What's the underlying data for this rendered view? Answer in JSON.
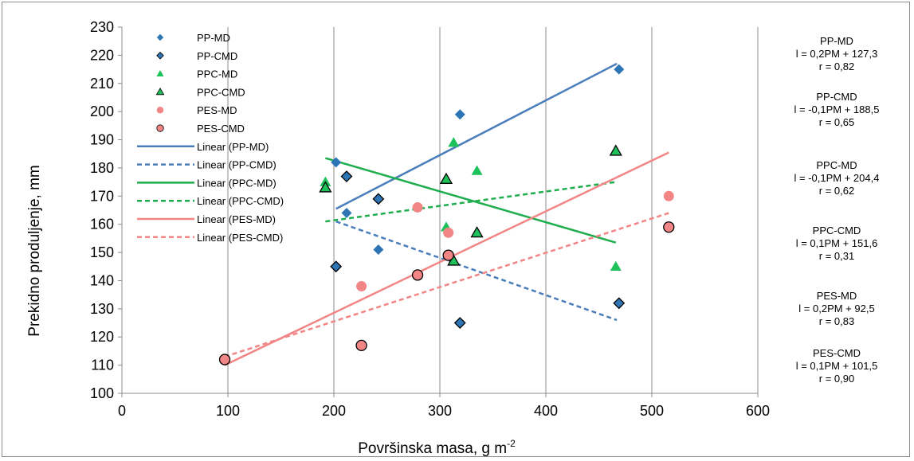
{
  "chart_data": {
    "type": "scatter",
    "xlabel": "Površinska masa, g m",
    "xlabel_sup": "-2",
    "ylabel": "Prekidno produljenje, mm",
    "xlim": [
      0,
      600
    ],
    "ylim": [
      100,
      230
    ],
    "x_ticks": [
      "0",
      "100",
      "200",
      "300",
      "400",
      "500",
      "600"
    ],
    "y_ticks": [
      "100",
      "110",
      "120",
      "130",
      "140",
      "150",
      "160",
      "170",
      "180",
      "190",
      "200",
      "210",
      "220",
      "230"
    ],
    "grid": "vertical",
    "legend_position": "top-left",
    "series": [
      {
        "name": "PP-MD",
        "marker": "diamond",
        "color": "#2e75b6",
        "outline": false,
        "points": [
          [
            202,
            182
          ],
          [
            212,
            164
          ],
          [
            242,
            151
          ],
          [
            319,
            199
          ],
          [
            469,
            215
          ]
        ]
      },
      {
        "name": "PP-CMD",
        "marker": "diamond",
        "color": "#2e75b6",
        "outline": true,
        "points": [
          [
            202,
            145
          ],
          [
            212,
            177
          ],
          [
            242,
            169
          ],
          [
            319,
            125
          ],
          [
            469,
            132
          ]
        ]
      },
      {
        "name": "PPC-MD",
        "marker": "triangle",
        "color": "#1ec15a",
        "outline": false,
        "points": [
          [
            192,
            175
          ],
          [
            306,
            159
          ],
          [
            313,
            189
          ],
          [
            335,
            179
          ],
          [
            466,
            145
          ]
        ]
      },
      {
        "name": "PPC-CMD",
        "marker": "triangle",
        "color": "#1ec15a",
        "outline": true,
        "points": [
          [
            192,
            173
          ],
          [
            306,
            176
          ],
          [
            313,
            147
          ],
          [
            335,
            157
          ],
          [
            466,
            186
          ]
        ]
      },
      {
        "name": "PES-MD",
        "marker": "circle",
        "color": "#f28585",
        "outline": false,
        "points": [
          [
            97,
            112
          ],
          [
            226,
            138
          ],
          [
            279,
            166
          ],
          [
            308,
            157
          ],
          [
            516,
            170
          ]
        ]
      },
      {
        "name": "PES-CMD",
        "marker": "circle",
        "color": "#f28585",
        "outline": true,
        "points": [
          [
            97,
            112
          ],
          [
            226,
            117
          ],
          [
            279,
            142
          ],
          [
            308,
            149
          ],
          [
            516,
            159
          ]
        ]
      }
    ],
    "trendlines": [
      {
        "name": "Linear (PP-MD)",
        "color": "#4a7ebb",
        "dash": false,
        "from": [
          202,
          165.5
        ],
        "to": [
          467,
          217
        ]
      },
      {
        "name": "Linear (PP-CMD)",
        "color": "#4a7ebb",
        "dash": true,
        "from": [
          202,
          161
        ],
        "to": [
          467,
          126
        ]
      },
      {
        "name": "Linear (PPC-MD)",
        "color": "#1fae4d",
        "dash": false,
        "from": [
          192,
          183.5
        ],
        "to": [
          466,
          153.5
        ]
      },
      {
        "name": "Linear (PPC-CMD)",
        "color": "#1fae4d",
        "dash": true,
        "from": [
          192,
          161
        ],
        "to": [
          466,
          175
        ]
      },
      {
        "name": "Linear (PES-MD)",
        "color": "#f28585",
        "dash": false,
        "from": [
          97,
          110
        ],
        "to": [
          516,
          185.5
        ]
      },
      {
        "name": "Linear (PES-CMD)",
        "color": "#f28585",
        "dash": true,
        "from": [
          97,
          113
        ],
        "to": [
          516,
          164
        ]
      }
    ],
    "annotations": [
      {
        "title": "PP-MD",
        "eq": "l = 0,2PM + 127,3",
        "r": "r = 0,82"
      },
      {
        "title": "PP-CMD",
        "eq": "l = -0,1PM + 188,5",
        "r": "r = 0,65"
      },
      {
        "title": "PPC-MD",
        "eq": "l = -0,1PM + 204,4",
        "r": "r = 0,62"
      },
      {
        "title": "PPC-CMD",
        "eq": "l = 0,1PM + 151,6",
        "r": "r = 0,31"
      },
      {
        "title": "PES-MD",
        "eq": "l = 0,2PM + 92,5",
        "r": "r = 0,83"
      },
      {
        "title": "PES-CMD",
        "eq": "l = 0,1PM + 101,5",
        "r": "r = 0,90"
      }
    ]
  }
}
